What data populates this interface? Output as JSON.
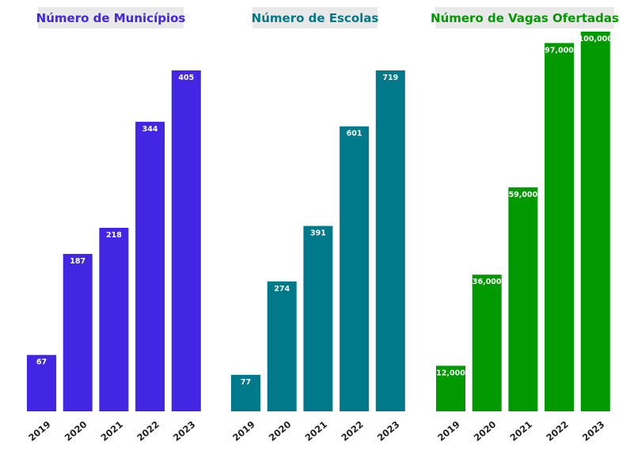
{
  "chart_data": [
    {
      "type": "bar",
      "title": "Número de Municípios",
      "color": "#4226e4",
      "categories": [
        "2019",
        "2020",
        "2021",
        "2022",
        "2023"
      ],
      "values": [
        67,
        187,
        218,
        344,
        405
      ],
      "value_labels": [
        "67",
        "187",
        "218",
        "344",
        "405"
      ],
      "ylim": [
        0,
        405
      ],
      "grid": false
    },
    {
      "type": "bar",
      "title": "Número de Escolas",
      "color": "#007a8a",
      "categories": [
        "2019",
        "2020",
        "2021",
        "2022",
        "2023"
      ],
      "values": [
        77,
        274,
        391,
        601,
        719
      ],
      "value_labels": [
        "77",
        "274",
        "391",
        "601",
        "719"
      ],
      "ylim": [
        0,
        719
      ],
      "grid": false
    },
    {
      "type": "bar",
      "title": "Número de Vagas Ofertadas",
      "color": "#009900",
      "categories": [
        "2019",
        "2020",
        "2021",
        "2022",
        "2023"
      ],
      "values": [
        12000,
        36000,
        59000,
        97000,
        100000
      ],
      "value_labels": [
        "12,000",
        "36,000",
        "59,000",
        "97,000",
        "100,000"
      ],
      "ylim": [
        0,
        100000
      ],
      "grid": false
    }
  ]
}
